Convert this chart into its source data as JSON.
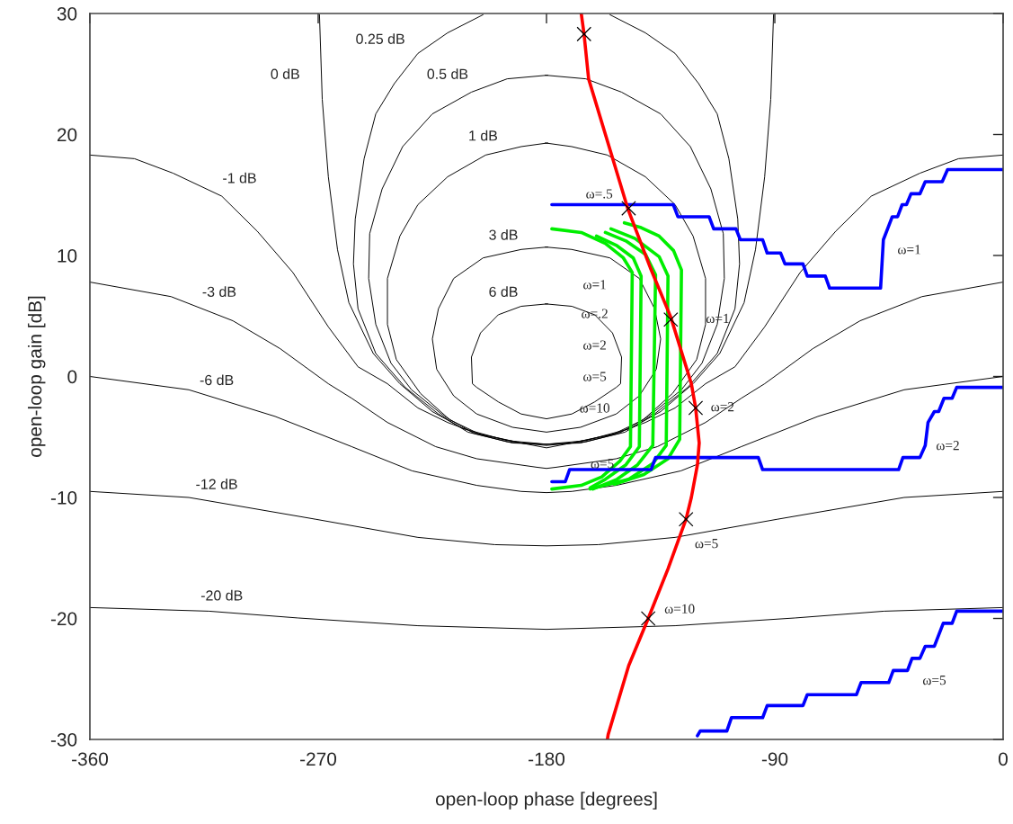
{
  "chart_data": {
    "type": "line",
    "xlabel": "open-loop phase [degrees]",
    "ylabel": "open-loop gain [dB]",
    "xlim": [
      -360,
      0
    ],
    "ylim": [
      -30,
      30
    ],
    "xticks": [
      -360,
      -270,
      -180,
      -90,
      0
    ],
    "yticks": [
      -30,
      -20,
      -10,
      0,
      10,
      20,
      30
    ],
    "grid": false,
    "legend": false,
    "series": [
      {
        "color": "#000000",
        "x": [
          -360,
          -342.4,
          -327.2,
          -308,
          -294,
          -280,
          -266,
          -254.3,
          -242.7,
          -230.7,
          -219,
          -207.5,
          -189.9,
          -180,
          -170.1,
          -152.5,
          -141,
          -129.3,
          -117.3,
          -105.7,
          -94,
          -80,
          -66,
          -52,
          -32.8,
          -17.6,
          0
        ],
        "values": [
          18.3,
          18.0,
          16.8,
          14.9,
          12.0,
          8.6,
          4.1,
          0.8,
          -0.6,
          -2.6,
          -3.8,
          -4.7,
          -5.5,
          -5.9,
          -5.5,
          -4.7,
          -3.8,
          -2.6,
          -0.6,
          0.8,
          4.1,
          8.6,
          12.0,
          14.9,
          16.8,
          18.0,
          18.3
        ]
      },
      {
        "color": "#000000",
        "x": [
          -360,
          -328,
          -303.6,
          -285,
          -266,
          -256.8,
          -242.7,
          -223.7,
          -207.5,
          -183.9,
          -180,
          -176.1,
          -152.5,
          -136.3,
          -117.3,
          -103.2,
          -94,
          -75,
          -56.4,
          -32,
          0
        ],
        "values": [
          7.8,
          6.6,
          4.6,
          2.3,
          -0.6,
          -1.8,
          -3.8,
          -5.8,
          -6.8,
          -7.5,
          -7.6,
          -7.5,
          -6.8,
          -5.8,
          -3.8,
          -1.8,
          -0.6,
          2.3,
          4.6,
          6.6,
          7.8
        ]
      },
      {
        "color": "#000000",
        "x": [
          -360,
          -321,
          -287,
          -256.8,
          -233,
          -207.5,
          -190,
          -180,
          -170,
          -152.5,
          -127,
          -103.2,
          -73,
          -39,
          0
        ],
        "values": [
          0.0,
          -1.1,
          -3.3,
          -5.8,
          -7.8,
          -9.0,
          -9.5,
          -9.6,
          -9.5,
          -9.0,
          -7.8,
          -5.8,
          -3.3,
          -1.1,
          0.0
        ]
      },
      {
        "color": "#000000",
        "x": [
          -360,
          -321,
          -271,
          -230.7,
          -200.4,
          -180,
          -159.6,
          -129.3,
          -89,
          -39,
          0
        ],
        "values": [
          -9.5,
          -10.0,
          -11.8,
          -13.3,
          -13.9,
          -14.0,
          -13.9,
          -13.3,
          -11.8,
          -10.0,
          -9.5
        ]
      },
      {
        "color": "#000000",
        "x": [
          -360,
          -313,
          -278,
          -230.7,
          -180,
          -129.3,
          -82,
          -47,
          0
        ],
        "values": [
          -19.1,
          -19.4,
          -19.96,
          -20.6,
          -20.9,
          -20.6,
          -19.96,
          -19.4,
          -19.1
        ]
      },
      {
        "color": "#000000",
        "x": [
          -269.5,
          -268.4,
          -266,
          -262.4,
          -257.9,
          -248.3,
          -237.8,
          -225,
          -213,
          -195.5,
          -180,
          -164.5,
          -147,
          -135,
          -122.2,
          -111.7,
          -102.1,
          -97.6,
          -94,
          -91.6,
          -90.5
        ],
        "values": [
          29.9,
          22.9,
          16.5,
          10.5,
          6.1,
          1.9,
          -0.6,
          -2.9,
          -4.3,
          -5.3,
          -5.6,
          -5.3,
          -4.3,
          -2.9,
          -0.6,
          1.9,
          6.1,
          10.5,
          16.5,
          22.9,
          29.9
        ]
      },
      {
        "color": "#000000",
        "x": [
          -205,
          -219,
          -230.7,
          -240,
          -247.3,
          -251.9,
          -255.4,
          -256.1,
          -254.3,
          -247.3,
          -235.7,
          -222.6,
          -211,
          -195.5,
          -180,
          -164.5,
          -149,
          -137.4,
          -124.3,
          -112.7,
          -105.7,
          -103.9,
          -104.6,
          -108.1,
          -112.7,
          -120,
          -129.3,
          -141,
          -155
        ],
        "values": [
          29.9,
          28.4,
          26.7,
          24.2,
          21.7,
          18.0,
          13.0,
          9.3,
          5.6,
          1.9,
          -0.9,
          -3.1,
          -4.6,
          -5.4,
          -5.7,
          -5.4,
          -4.6,
          -3.1,
          -0.9,
          1.9,
          5.6,
          9.3,
          13.0,
          18.0,
          21.7,
          24.2,
          26.7,
          28.4,
          29.9
        ]
      },
      {
        "color": "#000000",
        "x": [
          -179.5,
          -195.5,
          -209.6,
          -225,
          -236.7,
          -244.8,
          -249.7,
          -250.1,
          -247.3,
          -241.3,
          -233.2,
          -220.2,
          -208.6,
          -193.4,
          -180,
          -166.6,
          -151.4,
          -139.8,
          -126.8,
          -118.7,
          -112.7,
          -109.9,
          -110.3,
          -115.2,
          -123.3,
          -135,
          -150.4,
          -164.5,
          -180.5
        ],
        "values": [
          24.9,
          24.6,
          23.5,
          21.7,
          19.0,
          15.5,
          11.8,
          8.1,
          4.3,
          1.1,
          -1.1,
          -3.3,
          -4.7,
          -5.5,
          -5.6,
          -5.5,
          -4.7,
          -3.3,
          -1.1,
          1.1,
          4.3,
          8.1,
          11.8,
          15.5,
          19.0,
          21.7,
          23.5,
          24.6,
          24.9
        ]
      },
      {
        "color": "#000000",
        "x": [
          -179.5,
          -189.9,
          -204,
          -219,
          -230.7,
          -237.8,
          -242.7,
          -242.7,
          -239.2,
          -229.7,
          -218,
          -206,
          -190,
          -180,
          -170,
          -154,
          -142,
          -130.3,
          -120.8,
          -117.3,
          -117.3,
          -122.2,
          -129.3,
          -141,
          -156,
          -170.1,
          -180.5
        ],
        "values": [
          19.3,
          19.0,
          18.3,
          16.5,
          14.2,
          11.6,
          8.1,
          4.3,
          1.4,
          -1.4,
          -3.6,
          -4.8,
          -5.5,
          -5.6,
          -5.5,
          -4.8,
          -3.6,
          -1.4,
          1.4,
          4.3,
          8.1,
          11.6,
          14.2,
          16.5,
          18.3,
          19.0,
          19.3
        ]
      },
      {
        "color": "#000000",
        "x": [
          -179.5,
          -189.9,
          -205,
          -216.6,
          -222.6,
          -225,
          -223.3,
          -216.6,
          -207.5,
          -193.4,
          -180,
          -166.6,
          -152.5,
          -143.4,
          -136.7,
          -135,
          -137.4,
          -143.4,
          -155,
          -170.1,
          -180.5
        ],
        "values": [
          10.7,
          10.5,
          9.8,
          8.1,
          5.6,
          3.1,
          0.6,
          -1.6,
          -3.1,
          -4.2,
          -4.6,
          -4.2,
          -3.1,
          -1.6,
          0.6,
          3.1,
          5.6,
          8.1,
          9.8,
          10.5,
          10.7
        ]
      },
      {
        "color": "#000000",
        "x": [
          -179.5,
          -190,
          -199,
          -206,
          -209.6,
          -209.2,
          -207.5,
          -199,
          -190,
          -180,
          -170,
          -161,
          -152.5,
          -150.8,
          -150.4,
          -154,
          -161,
          -170,
          -180.5
        ],
        "values": [
          6.0,
          5.8,
          5.1,
          3.6,
          1.6,
          -0.6,
          -0.9,
          -2.1,
          -3.1,
          -3.5,
          -3.1,
          -2.1,
          -0.9,
          -0.6,
          1.6,
          3.6,
          5.1,
          5.8,
          6.0
        ]
      },
      {
        "color": "#00ee00",
        "x": [
          -177.9,
          -166.3,
          -156.8,
          -149.7,
          -146.2,
          -146.9,
          -151.1,
          -158.2,
          -166.3,
          -177.9
        ],
        "values": [
          12.2,
          11.9,
          11.0,
          9.8,
          8.6,
          -5.8,
          -7.0,
          -8.3,
          -9.0,
          -9.3
        ]
      },
      {
        "color": "#00ee00",
        "x": [
          -160.3,
          -152.2,
          -145.8,
          -142.7,
          -143.4,
          -148.7,
          -156.8,
          -162.8
        ],
        "values": [
          11.6,
          10.8,
          9.8,
          8.3,
          -5.8,
          -7.3,
          -8.5,
          -9.2
        ]
      },
      {
        "color": "#00ee00",
        "x": [
          -156.8,
          -148.7,
          -141,
          -137,
          -138.1,
          -144.1,
          -152.2,
          -161.7
        ],
        "values": [
          11.9,
          11.2,
          10.1,
          8.4,
          -5.7,
          -7.3,
          -8.5,
          -9.3
        ]
      },
      {
        "color": "#00ee00",
        "x": [
          -154.6,
          -145.1,
          -135.6,
          -132.1,
          -132.8,
          -138.1,
          -147.6,
          -162.8
        ],
        "values": [
          12.2,
          11.4,
          9.9,
          8.3,
          -5.7,
          -7.2,
          -8.5,
          -9.3
        ]
      },
      {
        "color": "#00ee00",
        "x": [
          -149.3,
          -142.7,
          -135.6,
          -129.9,
          -126.8,
          -127.5,
          -132.1,
          -141.6,
          -153.2
        ],
        "values": [
          12.7,
          12.3,
          11.6,
          10.4,
          8.8,
          -5.2,
          -6.8,
          -8.1,
          -8.9
        ]
      },
      {
        "color": "#0000ff",
        "x": [
          -177.9,
          -130,
          -128.2,
          -115.9,
          -114.1,
          -105.3,
          -103.6,
          -94.8,
          -93,
          -87.7,
          -86,
          -78.9,
          -77.2,
          -70.1,
          -68.4,
          -48.3,
          -47.2,
          -43.7,
          -41.6,
          -39.8,
          -38.1,
          -36.3,
          -32.8,
          -30.7,
          -24,
          -21.9,
          0
        ],
        "values": [
          14.2,
          14.2,
          13.2,
          13.2,
          12.2,
          12.2,
          11.3,
          11.3,
          10.2,
          10.2,
          9.3,
          9.3,
          8.3,
          8.3,
          7.3,
          7.3,
          11.3,
          13.2,
          13.2,
          14.2,
          14.2,
          15.1,
          15.1,
          16.1,
          16.1,
          17.1,
          17.1
        ]
      },
      {
        "color": "#0000ff",
        "x": [
          -177.9,
          -172.6,
          -170.9,
          -138.8,
          -137,
          -96.5,
          -94.8,
          -41.2,
          -39.5,
          -32.8,
          -30.7,
          -29.6,
          -27.1,
          -25.4,
          -23.3,
          -20.1,
          -18.3,
          0
        ],
        "values": [
          -8.7,
          -8.7,
          -7.7,
          -7.7,
          -6.7,
          -6.7,
          -7.7,
          -7.7,
          -6.7,
          -6.7,
          -5.7,
          -3.8,
          -2.9,
          -2.9,
          -1.8,
          -1.8,
          -0.9,
          -0.9
        ]
      },
      {
        "color": "#0000ff",
        "x": [
          -120.5,
          -119.4,
          -108.9,
          -107.1,
          -94.8,
          -93,
          -78.9,
          -77.2,
          -57.8,
          -56,
          -45.1,
          -43.3,
          -37.7,
          -35.9,
          -32.8,
          -30.7,
          -27.1,
          -23.6,
          -20.1,
          -18.3,
          0
        ],
        "values": [
          -29.7,
          -29.3,
          -29.3,
          -28.2,
          -28.2,
          -27.2,
          -27.2,
          -26.3,
          -26.3,
          -25.3,
          -25.3,
          -24.3,
          -24.3,
          -23.3,
          -23.3,
          -22.3,
          -22.3,
          -20.4,
          -20.4,
          -19.4,
          -19.4
        ]
      },
      {
        "color": "#ff0000",
        "x": [
          -166.3,
          -165.2,
          -163.4,
          -154.6,
          -148,
          -139.1,
          -131,
          -122.9,
          -121.2,
          -119.8,
          -120.5,
          -122.9,
          -125,
          -132.1,
          -139.9,
          -147.6,
          -155.7,
          -156
        ],
        "values": [
          30,
          28.3,
          24.6,
          18.5,
          13.9,
          9.0,
          4.9,
          -0.6,
          -2.6,
          -5.5,
          -7.3,
          -10.0,
          -11.8,
          -15.9,
          -20.0,
          -23.9,
          -29.6,
          -30
        ]
      },
      {
        "type": "scatter",
        "marker": "cross",
        "color": "#000000",
        "x": [
          -165.2,
          -147.6,
          -131,
          -121.2,
          -125,
          -139.9
        ],
        "values": [
          28.3,
          13.9,
          4.7,
          -2.6,
          -11.8,
          -20.0
        ]
      }
    ],
    "annotations": [
      "0.25 dB",
      "0 dB",
      "0.5 dB",
      "1 dB",
      "-1 dB",
      "3 dB",
      "-3 dB",
      "6 dB",
      "-6 dB",
      "-12 dB",
      "-20 dB",
      "ω=.5",
      "ω=1",
      {
        "text": "ω=2",
        "x": -110.6,
        "y": -2.6
      },
      "ω=5",
      "ω=10",
      "ω=1",
      "ω=2",
      "ω=5",
      "ω=1",
      "ω=.2",
      "ω=2",
      "ω=5",
      "ω=10",
      "ω=5"
    ]
  }
}
